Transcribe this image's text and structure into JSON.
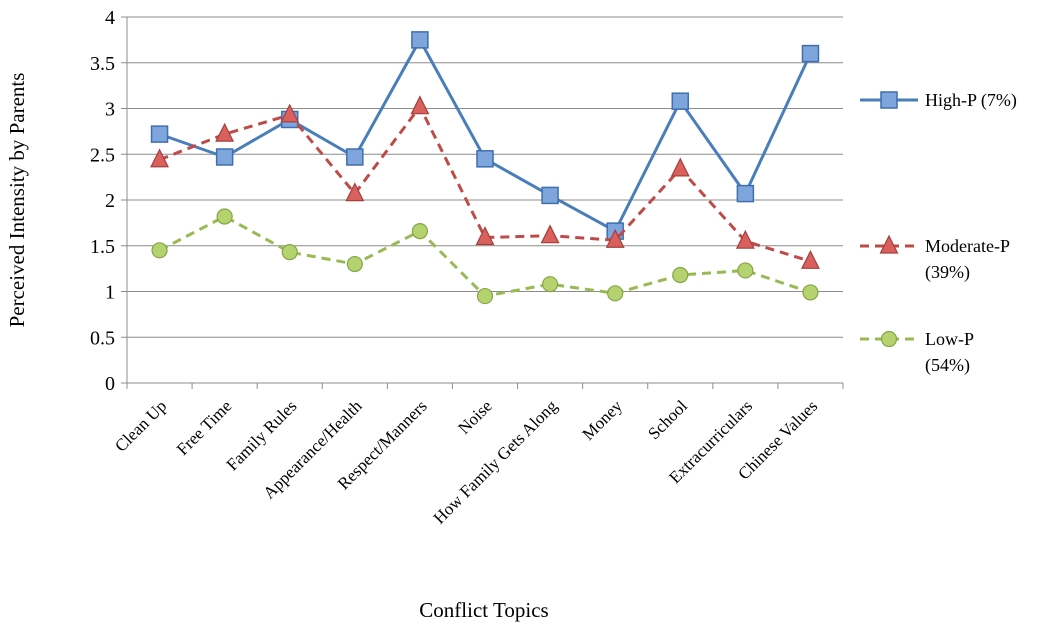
{
  "chart_data": {
    "type": "line",
    "xlabel": "Conflict Topics",
    "ylabel": "Perceived Intensity by Parents",
    "ylim": [
      0,
      4
    ],
    "yticks": [
      "0",
      "0.5",
      "1",
      "1.5",
      "2",
      "2.5",
      "3",
      "3.5",
      "4"
    ],
    "grid": "horizontal",
    "legend_position": "right",
    "categories": [
      "Clean Up",
      "Free Time",
      "Family Rules",
      "Appearance/Health",
      "Respect/Manners",
      "Noise",
      "How Family Gets Along",
      "Money",
      "School",
      "Extracurriculars",
      "Chinese Values"
    ],
    "series": [
      {
        "name": "High-P (7%)",
        "legend_lines": [
          "High-P (7%)"
        ],
        "color": "#4a7ebb",
        "marker": "square",
        "dash": "solid",
        "values": [
          2.72,
          2.47,
          2.88,
          2.47,
          3.75,
          2.45,
          2.05,
          1.66,
          3.08,
          2.07,
          3.6
        ]
      },
      {
        "name": "Moderate-P (39%)",
        "legend_lines": [
          "Moderate-P",
          "(39%)"
        ],
        "color": "#be4b48",
        "marker": "triangle",
        "dash": "dashed",
        "values": [
          2.44,
          2.72,
          2.93,
          2.07,
          3.02,
          1.59,
          1.61,
          1.56,
          2.34,
          1.55,
          1.33
        ]
      },
      {
        "name": "Low-P (54%)",
        "legend_lines": [
          "Low-P",
          "(54%)"
        ],
        "color": "#98b954",
        "marker": "circle",
        "dash": "dashed",
        "values": [
          1.45,
          1.82,
          1.43,
          1.3,
          1.66,
          0.95,
          1.08,
          0.98,
          1.18,
          1.23,
          0.99
        ]
      }
    ]
  }
}
